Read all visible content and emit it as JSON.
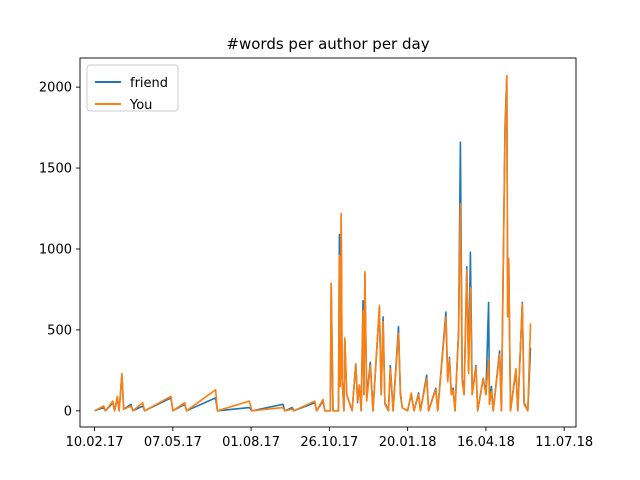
{
  "chart_data": {
    "type": "line",
    "title": "#words per author per day",
    "xlabel": "",
    "ylabel": "",
    "x_tick_labels": [
      "10.02.17",
      "07.05.17",
      "01.08.17",
      "26.10.17",
      "20.01.18",
      "16.04.18",
      "11.07.18"
    ],
    "x_tick_dates": [
      "2017-02-10",
      "2017-05-07",
      "2017-08-01",
      "2017-10-26",
      "2018-01-20",
      "2018-04-16",
      "2018-07-11"
    ],
    "y_ticks": [
      0,
      500,
      1000,
      1500,
      2000
    ],
    "xlim": [
      "2017-01-25",
      "2018-07-24"
    ],
    "ylim": [
      -100,
      2180
    ],
    "grid": false,
    "legend_position": "upper-left",
    "series": [
      {
        "name": "friend",
        "color": "#1f77b4",
        "points": [
          [
            "2017-02-10",
            0
          ],
          [
            "2017-02-20",
            20
          ],
          [
            "2017-02-22",
            0
          ],
          [
            "2017-03-02",
            50
          ],
          [
            "2017-03-04",
            0
          ],
          [
            "2017-03-07",
            80
          ],
          [
            "2017-03-09",
            0
          ],
          [
            "2017-03-12",
            220
          ],
          [
            "2017-03-14",
            10
          ],
          [
            "2017-03-22",
            40
          ],
          [
            "2017-03-24",
            0
          ],
          [
            "2017-04-04",
            30
          ],
          [
            "2017-04-06",
            0
          ],
          [
            "2017-05-05",
            80
          ],
          [
            "2017-05-07",
            0
          ],
          [
            "2017-05-20",
            40
          ],
          [
            "2017-05-22",
            0
          ],
          [
            "2017-06-23",
            80
          ],
          [
            "2017-06-25",
            0
          ],
          [
            "2017-07-30",
            20
          ],
          [
            "2017-08-02",
            0
          ],
          [
            "2017-09-05",
            40
          ],
          [
            "2017-09-07",
            0
          ],
          [
            "2017-09-15",
            20
          ],
          [
            "2017-09-17",
            0
          ],
          [
            "2017-10-10",
            50
          ],
          [
            "2017-10-12",
            0
          ],
          [
            "2017-10-19",
            60
          ],
          [
            "2017-10-21",
            0
          ],
          [
            "2017-10-27",
            0
          ],
          [
            "2017-10-28",
            780
          ],
          [
            "2017-10-30",
            0
          ],
          [
            "2017-11-05",
            0
          ],
          [
            "2017-11-06",
            1090
          ],
          [
            "2017-11-07",
            200
          ],
          [
            "2017-11-08",
            1200
          ],
          [
            "2017-11-09",
            200
          ],
          [
            "2017-11-11",
            0
          ],
          [
            "2017-11-12",
            440
          ],
          [
            "2017-11-14",
            100
          ],
          [
            "2017-11-20",
            0
          ],
          [
            "2017-11-24",
            290
          ],
          [
            "2017-11-26",
            50
          ],
          [
            "2017-11-28",
            150
          ],
          [
            "2017-11-30",
            0
          ],
          [
            "2017-12-02",
            680
          ],
          [
            "2017-12-03",
            100
          ],
          [
            "2017-12-04",
            850
          ],
          [
            "2017-12-06",
            80
          ],
          [
            "2017-12-10",
            300
          ],
          [
            "2017-12-13",
            0
          ],
          [
            "2017-12-20",
            640
          ],
          [
            "2017-12-22",
            100
          ],
          [
            "2017-12-24",
            580
          ],
          [
            "2017-12-26",
            50
          ],
          [
            "2017-12-30",
            0
          ],
          [
            "2018-01-01",
            280
          ],
          [
            "2018-01-04",
            0
          ],
          [
            "2018-01-10",
            520
          ],
          [
            "2018-01-12",
            100
          ],
          [
            "2018-01-14",
            20
          ],
          [
            "2018-01-20",
            0
          ],
          [
            "2018-01-24",
            100
          ],
          [
            "2018-01-27",
            0
          ],
          [
            "2018-02-01",
            110
          ],
          [
            "2018-02-03",
            0
          ],
          [
            "2018-02-10",
            220
          ],
          [
            "2018-02-12",
            0
          ],
          [
            "2018-02-20",
            140
          ],
          [
            "2018-02-22",
            0
          ],
          [
            "2018-03-03",
            610
          ],
          [
            "2018-03-05",
            200
          ],
          [
            "2018-03-07",
            330
          ],
          [
            "2018-03-09",
            100
          ],
          [
            "2018-03-11",
            140
          ],
          [
            "2018-03-13",
            0
          ],
          [
            "2018-03-17",
            500
          ],
          [
            "2018-03-19",
            1660
          ],
          [
            "2018-03-21",
            200
          ],
          [
            "2018-03-23",
            100
          ],
          [
            "2018-03-26",
            890
          ],
          [
            "2018-03-28",
            250
          ],
          [
            "2018-03-30",
            980
          ],
          [
            "2018-04-01",
            100
          ],
          [
            "2018-04-05",
            280
          ],
          [
            "2018-04-07",
            0
          ],
          [
            "2018-04-13",
            200
          ],
          [
            "2018-04-16",
            100
          ],
          [
            "2018-04-19",
            670
          ],
          [
            "2018-04-20",
            40
          ],
          [
            "2018-04-22",
            150
          ],
          [
            "2018-04-24",
            0
          ],
          [
            "2018-05-01",
            370
          ],
          [
            "2018-05-03",
            0
          ],
          [
            "2018-05-07",
            1750
          ],
          [
            "2018-05-09",
            2070
          ],
          [
            "2018-05-10",
            600
          ],
          [
            "2018-05-11",
            940
          ],
          [
            "2018-05-13",
            0
          ],
          [
            "2018-05-19",
            250
          ],
          [
            "2018-05-21",
            0
          ],
          [
            "2018-05-26",
            670
          ],
          [
            "2018-05-28",
            50
          ],
          [
            "2018-06-01",
            0
          ],
          [
            "2018-06-04",
            390
          ]
        ]
      },
      {
        "name": "You",
        "color": "#ff7f0e",
        "points": [
          [
            "2017-02-10",
            0
          ],
          [
            "2017-02-20",
            30
          ],
          [
            "2017-02-22",
            0
          ],
          [
            "2017-03-02",
            60
          ],
          [
            "2017-03-04",
            0
          ],
          [
            "2017-03-07",
            90
          ],
          [
            "2017-03-09",
            0
          ],
          [
            "2017-03-12",
            230
          ],
          [
            "2017-03-14",
            10
          ],
          [
            "2017-03-22",
            30
          ],
          [
            "2017-03-24",
            0
          ],
          [
            "2017-04-04",
            50
          ],
          [
            "2017-04-06",
            0
          ],
          [
            "2017-05-05",
            90
          ],
          [
            "2017-05-07",
            0
          ],
          [
            "2017-05-20",
            50
          ],
          [
            "2017-05-22",
            0
          ],
          [
            "2017-06-23",
            130
          ],
          [
            "2017-06-25",
            0
          ],
          [
            "2017-07-30",
            60
          ],
          [
            "2017-08-02",
            0
          ],
          [
            "2017-09-05",
            20
          ],
          [
            "2017-09-07",
            0
          ],
          [
            "2017-09-15",
            10
          ],
          [
            "2017-09-17",
            0
          ],
          [
            "2017-10-10",
            60
          ],
          [
            "2017-10-12",
            0
          ],
          [
            "2017-10-19",
            70
          ],
          [
            "2017-10-21",
            0
          ],
          [
            "2017-10-27",
            0
          ],
          [
            "2017-10-28",
            790
          ],
          [
            "2017-10-30",
            0
          ],
          [
            "2017-11-05",
            0
          ],
          [
            "2017-11-06",
            960
          ],
          [
            "2017-11-07",
            150
          ],
          [
            "2017-11-08",
            1220
          ],
          [
            "2017-11-09",
            200
          ],
          [
            "2017-11-11",
            0
          ],
          [
            "2017-11-12",
            450
          ],
          [
            "2017-11-14",
            100
          ],
          [
            "2017-11-20",
            0
          ],
          [
            "2017-11-24",
            290
          ],
          [
            "2017-11-26",
            60
          ],
          [
            "2017-11-28",
            160
          ],
          [
            "2017-11-30",
            0
          ],
          [
            "2017-12-02",
            620
          ],
          [
            "2017-12-03",
            100
          ],
          [
            "2017-12-04",
            860
          ],
          [
            "2017-12-06",
            60
          ],
          [
            "2017-12-10",
            280
          ],
          [
            "2017-12-13",
            0
          ],
          [
            "2017-12-20",
            650
          ],
          [
            "2017-12-22",
            100
          ],
          [
            "2017-12-24",
            550
          ],
          [
            "2017-12-26",
            40
          ],
          [
            "2017-12-30",
            0
          ],
          [
            "2018-01-01",
            260
          ],
          [
            "2018-01-04",
            0
          ],
          [
            "2018-01-10",
            480
          ],
          [
            "2018-01-12",
            120
          ],
          [
            "2018-01-14",
            20
          ],
          [
            "2018-01-20",
            0
          ],
          [
            "2018-01-24",
            110
          ],
          [
            "2018-01-27",
            0
          ],
          [
            "2018-02-01",
            100
          ],
          [
            "2018-02-03",
            0
          ],
          [
            "2018-02-10",
            200
          ],
          [
            "2018-02-12",
            0
          ],
          [
            "2018-02-20",
            130
          ],
          [
            "2018-02-22",
            0
          ],
          [
            "2018-03-03",
            580
          ],
          [
            "2018-03-05",
            180
          ],
          [
            "2018-03-07",
            320
          ],
          [
            "2018-03-09",
            100
          ],
          [
            "2018-03-11",
            130
          ],
          [
            "2018-03-13",
            0
          ],
          [
            "2018-03-17",
            480
          ],
          [
            "2018-03-19",
            1280
          ],
          [
            "2018-03-21",
            180
          ],
          [
            "2018-03-23",
            100
          ],
          [
            "2018-03-26",
            870
          ],
          [
            "2018-03-28",
            230
          ],
          [
            "2018-03-30",
            760
          ],
          [
            "2018-04-01",
            100
          ],
          [
            "2018-04-05",
            270
          ],
          [
            "2018-04-07",
            0
          ],
          [
            "2018-04-13",
            200
          ],
          [
            "2018-04-16",
            100
          ],
          [
            "2018-04-19",
            320
          ],
          [
            "2018-04-20",
            40
          ],
          [
            "2018-04-22",
            120
          ],
          [
            "2018-04-24",
            0
          ],
          [
            "2018-05-01",
            350
          ],
          [
            "2018-05-03",
            0
          ],
          [
            "2018-05-07",
            1700
          ],
          [
            "2018-05-09",
            2070
          ],
          [
            "2018-05-10",
            580
          ],
          [
            "2018-05-11",
            940
          ],
          [
            "2018-05-13",
            0
          ],
          [
            "2018-05-19",
            260
          ],
          [
            "2018-05-21",
            0
          ],
          [
            "2018-05-26",
            660
          ],
          [
            "2018-05-28",
            40
          ],
          [
            "2018-06-01",
            0
          ],
          [
            "2018-06-04",
            540
          ]
        ]
      }
    ]
  }
}
